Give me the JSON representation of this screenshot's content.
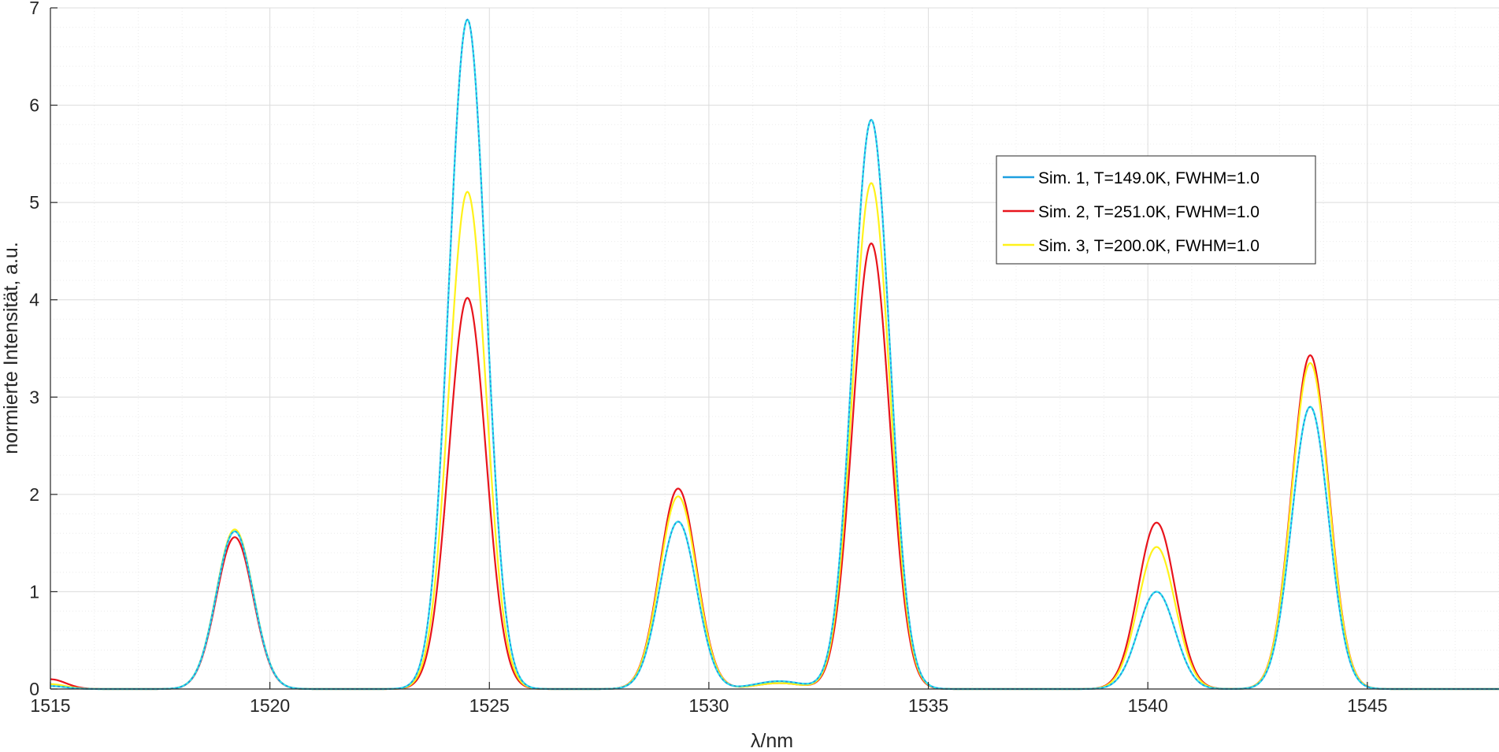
{
  "chart_data": {
    "type": "line",
    "xlabel": "λ/nm",
    "ylabel": "normierte Intensität, a.u.",
    "xlim": [
      1515,
      1548
    ],
    "ylim": [
      0,
      7
    ],
    "x_ticks": [
      1515,
      1520,
      1525,
      1530,
      1535,
      1540,
      1545
    ],
    "y_ticks": [
      0,
      1,
      2,
      3,
      4,
      5,
      6,
      7
    ],
    "grid": true,
    "minor_grid": true,
    "legend_position": "top-right",
    "peak_positions_nm": [
      1519.2,
      1524.5,
      1529.3,
      1531.6,
      1533.7,
      1540.2,
      1543.7
    ],
    "series": [
      {
        "name": "Sim. 1, T=149.0K, FWHM=1.0",
        "color": "#1E9FE0",
        "overlay_color": "#2EE6EE",
        "peak_heights": [
          1.62,
          6.88,
          1.72,
          0.08,
          5.85,
          1.0,
          2.9
        ],
        "start_value": 0.03
      },
      {
        "name": "Sim. 2, T=251.0K, FWHM=1.0",
        "color": "#E8141C",
        "peak_heights": [
          1.56,
          4.02,
          2.06,
          0.06,
          4.58,
          1.71,
          3.43
        ],
        "start_value": 0.1
      },
      {
        "name": "Sim. 3, T=200.0K, FWHM=1.0",
        "color": "#FFF21A",
        "peak_heights": [
          1.64,
          5.11,
          1.98,
          0.06,
          5.2,
          1.46,
          3.35
        ],
        "start_value": 0.05
      }
    ]
  }
}
